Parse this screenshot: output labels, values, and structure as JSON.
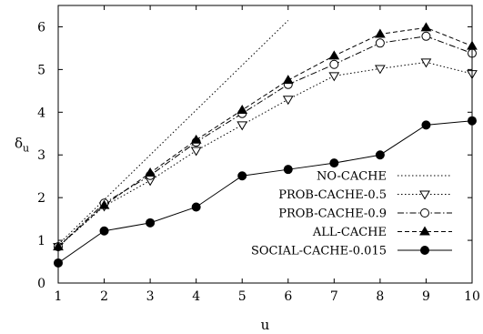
{
  "chart_data": {
    "type": "line",
    "title": "",
    "xlabel": "u",
    "ylabel": "δ",
    "ylabel_subscript": "u",
    "xlim": [
      1,
      10
    ],
    "ylim": [
      0,
      6.5
    ],
    "x_ticks": [
      1,
      2,
      3,
      4,
      5,
      6,
      7,
      8,
      9,
      10
    ],
    "y_ticks": [
      0,
      1,
      2,
      3,
      4,
      5,
      6
    ],
    "grid": false,
    "legend_position": "bottom-right",
    "series": [
      {
        "name": "NO-CACHE",
        "style": "dotted",
        "marker": "none",
        "x": [
          1,
          2,
          3,
          4,
          5,
          6
        ],
        "y": [
          0.9,
          1.95,
          3.0,
          4.05,
          5.1,
          6.15
        ]
      },
      {
        "name": "PROB-CACHE-0.5",
        "style": "dotted",
        "marker": "triangle-down-open",
        "x": [
          1,
          2,
          3,
          4,
          5,
          6,
          7,
          8,
          9,
          10
        ],
        "y": [
          0.85,
          1.8,
          2.4,
          3.1,
          3.7,
          4.3,
          4.85,
          5.02,
          5.17,
          4.9
        ]
      },
      {
        "name": "PROB-CACHE-0.9",
        "style": "dashdot",
        "marker": "circle-open",
        "x": [
          1,
          2,
          3,
          4,
          5,
          6,
          7,
          8,
          9,
          10
        ],
        "y": [
          0.85,
          1.87,
          2.52,
          3.3,
          3.97,
          4.65,
          5.12,
          5.62,
          5.78,
          5.38
        ]
      },
      {
        "name": "ALL-CACHE",
        "style": "dashed",
        "marker": "triangle-up-filled",
        "x": [
          1,
          2,
          3,
          4,
          5,
          6,
          7,
          8,
          9,
          10
        ],
        "y": [
          0.85,
          1.82,
          2.58,
          3.35,
          4.05,
          4.75,
          5.32,
          5.83,
          5.98,
          5.55
        ]
      },
      {
        "name": "SOCIAL-CACHE-0.015",
        "style": "solid",
        "marker": "circle-filled",
        "x": [
          1,
          2,
          3,
          4,
          5,
          6,
          7,
          8,
          9,
          10
        ],
        "y": [
          0.47,
          1.22,
          1.41,
          1.78,
          2.51,
          2.66,
          2.81,
          3.0,
          3.7,
          3.8
        ]
      }
    ]
  }
}
